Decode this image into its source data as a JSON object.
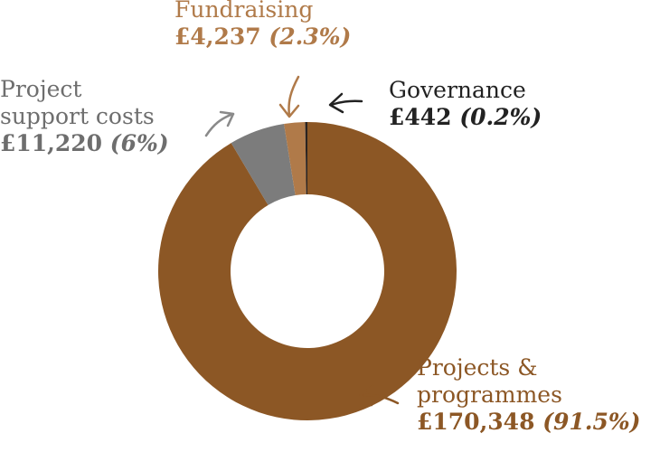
{
  "chart_data": {
    "type": "pie",
    "donut": true,
    "legend": "none",
    "slices": [
      {
        "name": "Projects &",
        "name2": "programmes",
        "amount": "£170,348",
        "percent": "(91.5%)",
        "value": 170348,
        "color": "#8c5725",
        "label_color": "#8c5725",
        "arrow_color": "#8c5725"
      },
      {
        "name": "Project",
        "name2": "support costs",
        "amount": "£11,220",
        "percent": "(6%)",
        "value": 11220,
        "color": "#7c7c7c",
        "label_color": "#6e6e6e",
        "arrow_color": "#8a8a8a"
      },
      {
        "name": "Fundraising",
        "name2": "",
        "amount": "£4,237",
        "percent": "(2.3%)",
        "value": 4237,
        "color": "#b07a49",
        "label_color": "#b07a49",
        "arrow_color": "#b07a49"
      },
      {
        "name": "Governance",
        "name2": "",
        "amount": "£442",
        "percent": "(0.2%)",
        "value": 442,
        "color": "#2a2320",
        "label_color": "#222222",
        "arrow_color": "#222222"
      }
    ]
  }
}
